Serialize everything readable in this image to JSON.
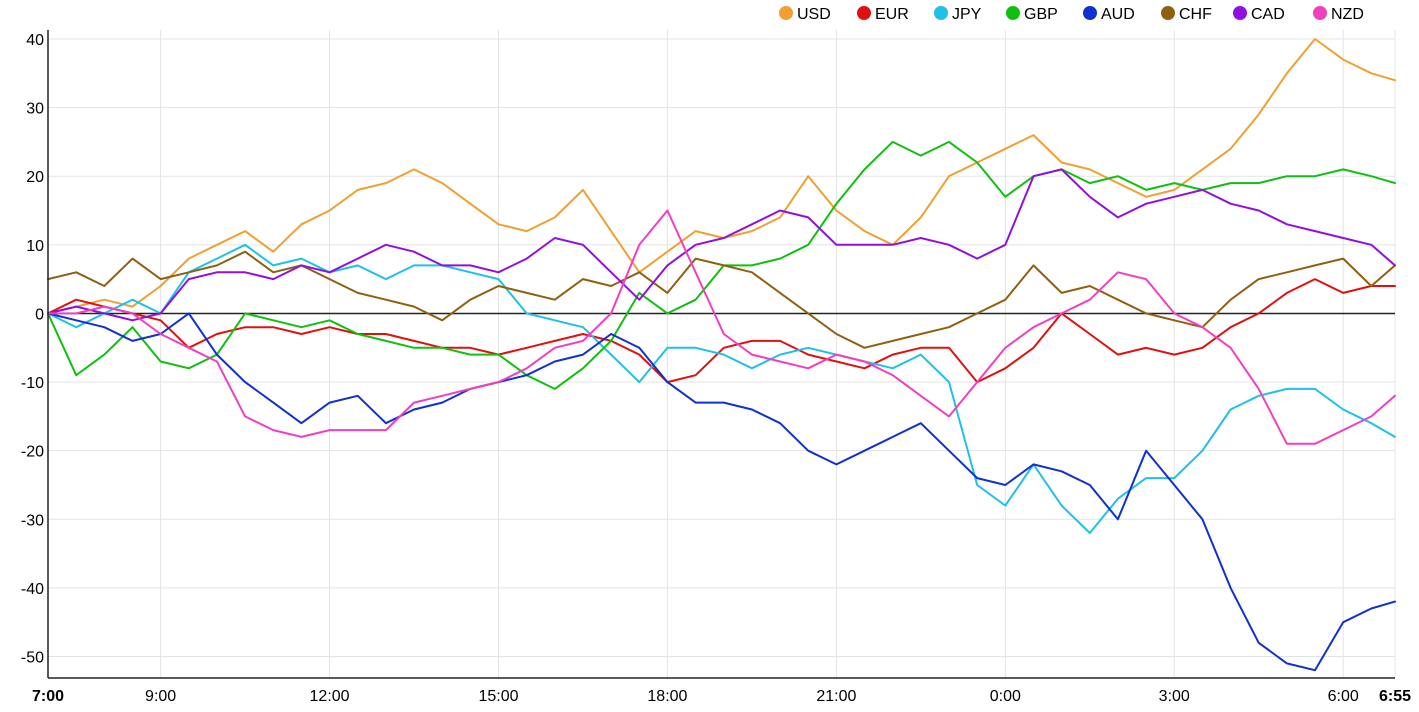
{
  "chart_data": {
    "type": "line",
    "title": "",
    "xlabel": "",
    "ylabel": "",
    "legend_position": "top-right",
    "grid": true,
    "ylim": [
      -52,
      41
    ],
    "yticks": [
      40,
      30,
      20,
      10,
      0,
      -10,
      -20,
      -30,
      -40,
      -50
    ],
    "ytick_labels": [
      "40",
      "30",
      "20",
      "10",
      "0",
      "-10",
      "-20",
      "-30",
      "-40",
      "-50"
    ],
    "xlim_hours": [
      0,
      23.92
    ],
    "x_ticks": [
      {
        "label": "7:00",
        "hour": 0,
        "bold": true
      },
      {
        "label": "9:00",
        "hour": 2,
        "bold": false
      },
      {
        "label": "12:00",
        "hour": 5,
        "bold": false
      },
      {
        "label": "15:00",
        "hour": 8,
        "bold": false
      },
      {
        "label": "18:00",
        "hour": 11,
        "bold": false
      },
      {
        "label": "21:00",
        "hour": 14,
        "bold": false
      },
      {
        "label": "0:00",
        "hour": 17,
        "bold": false
      },
      {
        "label": "3:00",
        "hour": 20,
        "bold": false
      },
      {
        "label": "6:00",
        "hour": 23,
        "bold": false
      },
      {
        "label": "6:55",
        "hour": 23.92,
        "bold": true
      }
    ],
    "x": [
      0,
      0.5,
      1,
      1.5,
      2,
      2.5,
      3,
      3.5,
      4,
      4.5,
      5,
      5.5,
      6,
      6.5,
      7,
      7.5,
      8,
      8.5,
      9,
      9.5,
      10,
      10.5,
      11,
      11.5,
      12,
      12.5,
      13,
      13.5,
      14,
      14.5,
      15,
      15.5,
      16,
      16.5,
      17,
      17.5,
      18,
      18.5,
      19,
      19.5,
      20,
      20.5,
      21,
      21.5,
      22,
      22.5,
      23,
      23.5,
      23.92
    ],
    "series": [
      {
        "name": "USD",
        "color": "#f0a030",
        "values": [
          0,
          1,
          2,
          1,
          4,
          8,
          10,
          12,
          9,
          13,
          15,
          18,
          19,
          21,
          19,
          16,
          13,
          12,
          14,
          18,
          12,
          6,
          9,
          12,
          11,
          12,
          14,
          20,
          15,
          12,
          10,
          14,
          20,
          22,
          24,
          26,
          22,
          21,
          19,
          17,
          18,
          21,
          24,
          29,
          35,
          40,
          37,
          35,
          34
        ]
      },
      {
        "name": "EUR",
        "color": "#e01010",
        "values": [
          0,
          2,
          1,
          0,
          -1,
          -5,
          -3,
          -2,
          -2,
          -3,
          -2,
          -3,
          -3,
          -4,
          -5,
          -5,
          -6,
          -5,
          -4,
          -3,
          -4,
          -6,
          -10,
          -9,
          -5,
          -4,
          -4,
          -6,
          -7,
          -8,
          -6,
          -5,
          -5,
          -10,
          -8,
          -5,
          0,
          -3,
          -6,
          -5,
          -6,
          -5,
          -2,
          0,
          3,
          5,
          3,
          4,
          4
        ]
      },
      {
        "name": "JPY",
        "color": "#20c0e8",
        "values": [
          0,
          -2,
          0,
          2,
          0,
          6,
          8,
          10,
          7,
          8,
          6,
          7,
          5,
          7,
          7,
          6,
          5,
          0,
          -1,
          -2,
          -6,
          -10,
          -5,
          -5,
          -6,
          -8,
          -6,
          -5,
          -6,
          -7,
          -8,
          -6,
          -10,
          -25,
          -28,
          -22,
          -28,
          -32,
          -27,
          -24,
          -24,
          -20,
          -14,
          -12,
          -11,
          -11,
          -14,
          -16,
          -18
        ]
      },
      {
        "name": "GBP",
        "color": "#10c010",
        "values": [
          0,
          -9,
          -6,
          -2,
          -7,
          -8,
          -6,
          0,
          -1,
          -2,
          -1,
          -3,
          -4,
          -5,
          -5,
          -6,
          -6,
          -9,
          -11,
          -8,
          -4,
          3,
          0,
          2,
          7,
          7,
          8,
          10,
          16,
          21,
          25,
          23,
          25,
          22,
          17,
          20,
          21,
          19,
          20,
          18,
          19,
          18,
          19,
          19,
          20,
          20,
          21,
          20,
          19
        ]
      },
      {
        "name": "AUD",
        "color": "#1030d0",
        "values": [
          0,
          -1,
          -2,
          -4,
          -3,
          0,
          -6,
          -10,
          -13,
          -16,
          -13,
          -12,
          -16,
          -14,
          -13,
          -11,
          -10,
          -9,
          -7,
          -6,
          -3,
          -5,
          -10,
          -13,
          -13,
          -14,
          -16,
          -20,
          -22,
          -20,
          -18,
          -16,
          -20,
          -24,
          -25,
          -22,
          -23,
          -25,
          -30,
          -20,
          -25,
          -30,
          -40,
          -48,
          -51,
          -52,
          -45,
          -43,
          -42
        ]
      },
      {
        "name": "CHF",
        "color": "#906010",
        "values": [
          5,
          6,
          4,
          8,
          5,
          6,
          7,
          9,
          6,
          7,
          5,
          3,
          2,
          1,
          -1,
          2,
          4,
          3,
          2,
          5,
          4,
          6,
          3,
          8,
          7,
          6,
          3,
          0,
          -3,
          -5,
          -4,
          -3,
          -2,
          0,
          2,
          7,
          3,
          4,
          2,
          0,
          -1,
          -2,
          2,
          5,
          6,
          7,
          8,
          4,
          7
        ]
      },
      {
        "name": "CAD",
        "color": "#9010e0",
        "values": [
          0,
          1,
          0,
          -1,
          0,
          5,
          6,
          6,
          5,
          7,
          6,
          8,
          10,
          9,
          7,
          7,
          6,
          8,
          11,
          10,
          6,
          2,
          7,
          10,
          11,
          13,
          15,
          14,
          10,
          10,
          10,
          11,
          10,
          8,
          10,
          20,
          21,
          17,
          14,
          16,
          17,
          18,
          16,
          15,
          13,
          12,
          11,
          10,
          7
        ]
      },
      {
        "name": "NZD",
        "color": "#f040c0",
        "values": [
          0,
          0,
          1,
          0,
          -3,
          -5,
          -7,
          -15,
          -17,
          -18,
          -17,
          -17,
          -17,
          -13,
          -12,
          -11,
          -10,
          -8,
          -5,
          -4,
          0,
          10,
          15,
          6,
          -3,
          -6,
          -7,
          -8,
          -6,
          -7,
          -9,
          -12,
          -15,
          -10,
          -5,
          -2,
          0,
          2,
          6,
          5,
          0,
          -2,
          -5,
          -11,
          -19,
          -19,
          -17,
          -15,
          -12
        ]
      }
    ]
  }
}
